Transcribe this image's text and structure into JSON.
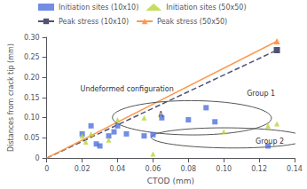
{
  "chart_data": {
    "type": "scatter",
    "xlabel": "CTOD (mm)",
    "ylabel": "Distances from crack tip (mm)",
    "xlim": [
      0,
      0.14
    ],
    "ylim": [
      0,
      0.3
    ],
    "xticks": [
      0,
      0.02,
      0.04,
      0.06,
      0.08,
      {
        "value": 0.1,
        "label": "0.10"
      },
      0.12,
      0.14
    ],
    "yticks": [
      0,
      0.05,
      {
        "value": 0.1,
        "label": "0.10"
      },
      0.15,
      {
        "value": 0.2,
        "label": "0.20"
      },
      0.25,
      {
        "value": 0.3,
        "label": "0.30"
      }
    ],
    "grid": false,
    "legend": "upper left",
    "series": [
      {
        "name": "Initiation sites (10x10)",
        "type": "scatter",
        "marker": "square",
        "x": [
          0.02,
          0.025,
          0.028,
          0.03,
          0.035,
          0.038,
          0.04,
          0.045,
          0.055,
          0.06,
          0.065,
          0.08,
          0.09,
          0.095,
          0.125
        ],
        "values": [
          0.06,
          0.08,
          0.035,
          0.03,
          0.055,
          0.065,
          0.08,
          0.06,
          0.055,
          0.058,
          0.1,
          0.095,
          0.125,
          0.09,
          0.03
        ]
      },
      {
        "name": "Initiation sites (50x50)",
        "type": "scatter",
        "marker": "triangle",
        "x": [
          0.02,
          0.022,
          0.025,
          0.035,
          0.04,
          0.055,
          0.06,
          0.1,
          0.125,
          0.13
        ],
        "values": [
          0.055,
          0.04,
          0.06,
          0.045,
          0.095,
          0.1,
          0.01,
          0.065,
          0.08,
          0.085
        ]
      },
      {
        "name": "Peak stress (10x10)",
        "type": "line",
        "marker": "square",
        "line_style": "dashed",
        "x": [
          0.0,
          0.13
        ],
        "values": [
          0.0,
          0.268
        ]
      },
      {
        "name": "Peak stress (50x50)",
        "type": "line",
        "marker": "triangle",
        "line_style": "solid",
        "x": [
          0.0,
          0.13
        ],
        "values": [
          0.0,
          0.29
        ]
      }
    ],
    "ellipses": [
      {
        "x": 0.082,
        "y": 0.1,
        "width": 0.09,
        "height": 0.085,
        "angle": -10
      },
      {
        "x": 0.103,
        "y": 0.05,
        "width": 0.088,
        "height": 0.05,
        "angle": -3
      }
    ],
    "annotations": [
      {
        "text": "Group 1",
        "x": 0.113,
        "y": 0.152
      },
      {
        "text": "Group 2",
        "x": 0.118,
        "y": 0.033
      },
      {
        "text": "A",
        "x": 0.063,
        "y": 0.098
      },
      {
        "text": "Undeformed configuration",
        "x": 0.019,
        "y": 0.162
      }
    ]
  }
}
